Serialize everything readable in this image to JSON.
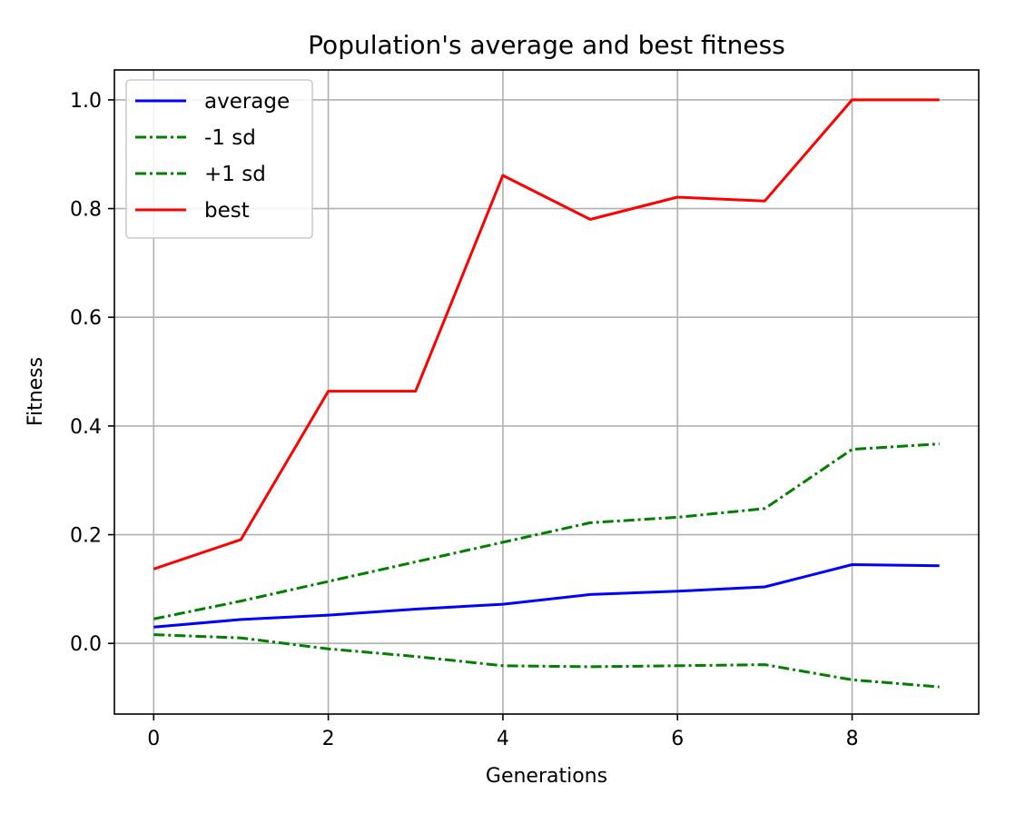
{
  "chart_data": {
    "type": "line",
    "title": "Population's average and best fitness",
    "xlabel": "Generations",
    "ylabel": "Fitness",
    "xlim": [
      -0.45,
      9.45
    ],
    "ylim": [
      -0.13,
      1.055
    ],
    "xticks": [
      0,
      2,
      4,
      6,
      8
    ],
    "xtick_labels": [
      "0",
      "2",
      "4",
      "6",
      "8"
    ],
    "yticks": [
      0.0,
      0.2,
      0.4,
      0.6,
      0.8,
      1.0
    ],
    "ytick_labels": [
      "0.0",
      "0.2",
      "0.4",
      "0.6",
      "0.8",
      "1.0"
    ],
    "grid": true,
    "legend_position": "upper-left",
    "x": [
      0,
      1,
      2,
      3,
      4,
      5,
      6,
      7,
      8,
      9
    ],
    "series": [
      {
        "name": "average",
        "color": "#0000ff",
        "style": "solid",
        "values": [
          0.03,
          0.044,
          0.052,
          0.063,
          0.072,
          0.09,
          0.096,
          0.104,
          0.145,
          0.143
        ]
      },
      {
        "name": "-1 sd",
        "color": "#007f00",
        "style": "dashdot",
        "values": [
          0.016,
          0.01,
          -0.01,
          -0.024,
          -0.041,
          -0.043,
          -0.041,
          -0.039,
          -0.067,
          -0.08
        ]
      },
      {
        "name": "+1 sd",
        "color": "#007f00",
        "style": "dashdot",
        "values": [
          0.045,
          0.078,
          0.114,
          0.15,
          0.186,
          0.222,
          0.232,
          0.248,
          0.357,
          0.367
        ]
      },
      {
        "name": "best",
        "color": "#ff0000",
        "style": "solid",
        "values": [
          0.137,
          0.191,
          0.464,
          0.464,
          0.861,
          0.78,
          0.821,
          0.814,
          1.0,
          1.0
        ]
      }
    ]
  }
}
